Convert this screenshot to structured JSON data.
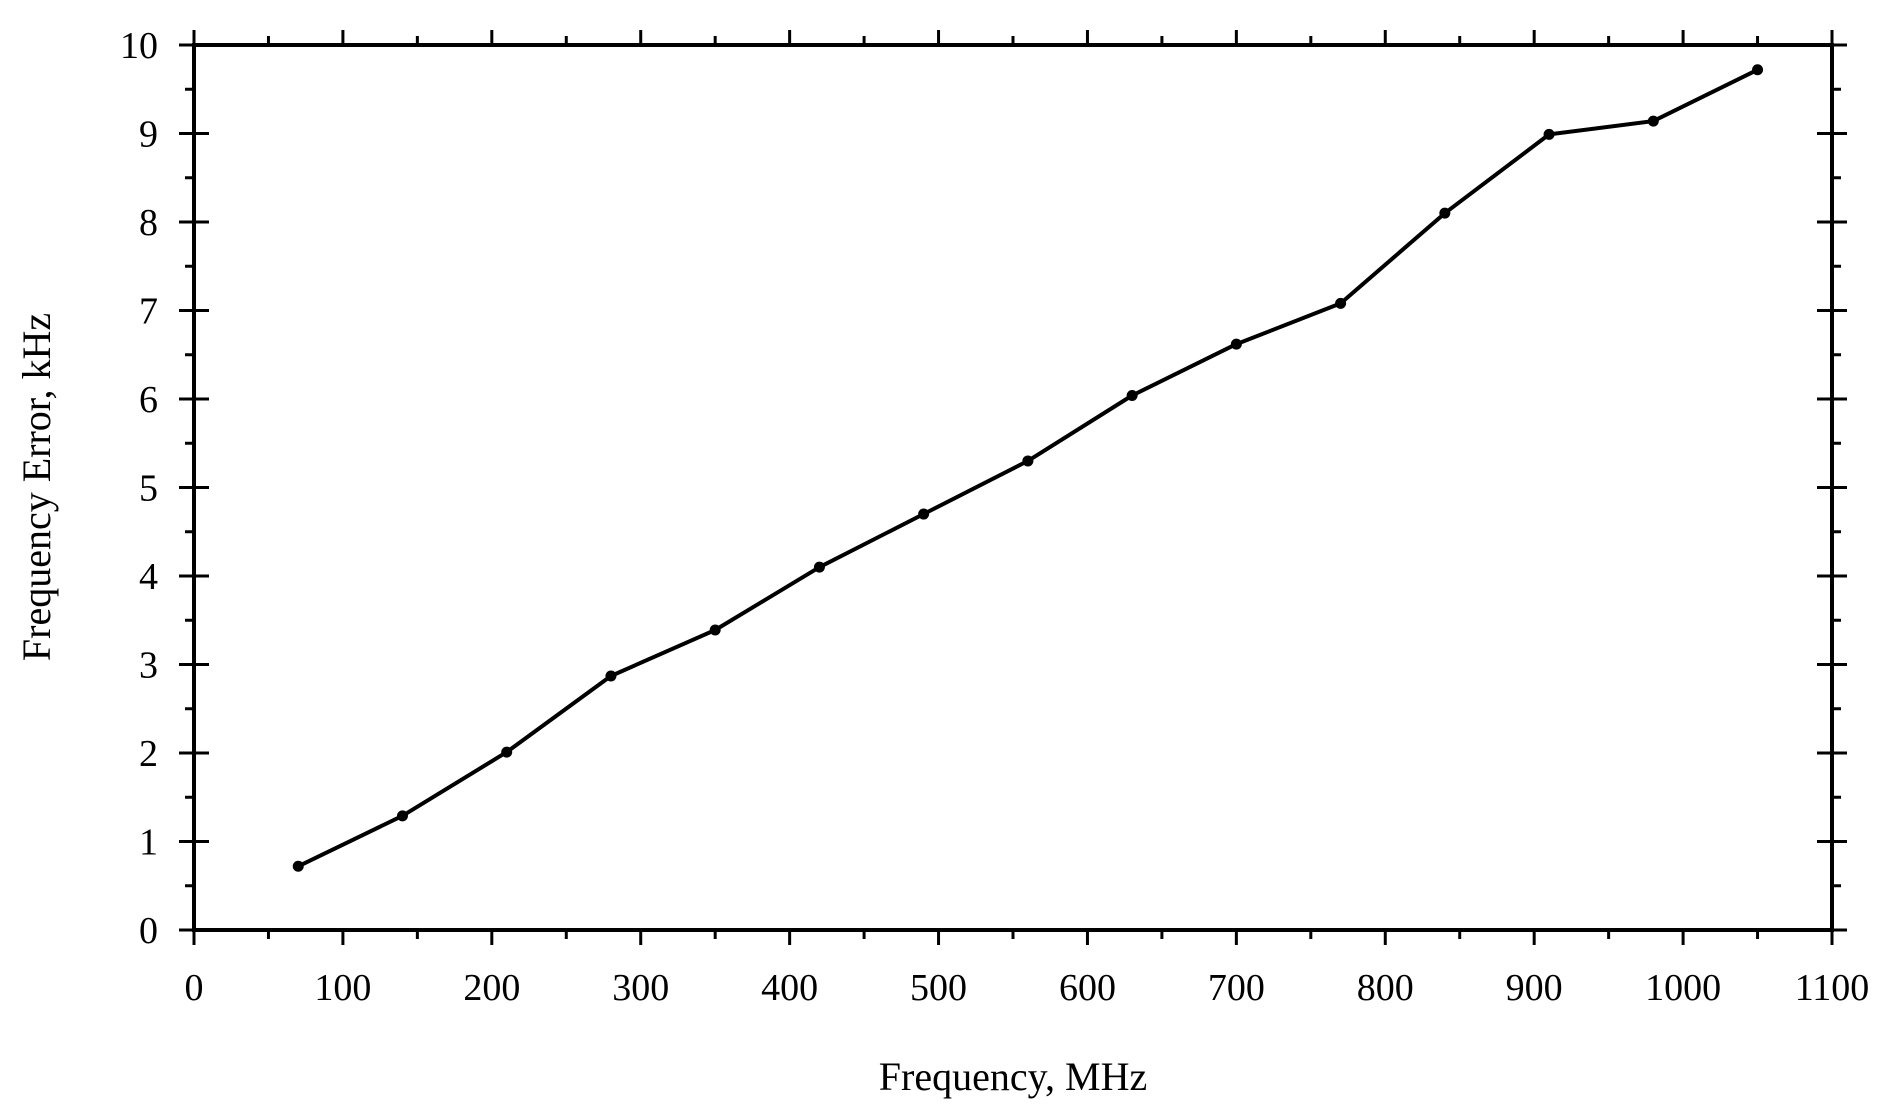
{
  "chart_data": {
    "type": "line",
    "title": "",
    "xlabel": "Frequency, MHz",
    "ylabel": "Frequency Error, kHz",
    "xlim": [
      0,
      1100
    ],
    "ylim": [
      0,
      10
    ],
    "x_ticks": [
      0,
      100,
      200,
      300,
      400,
      500,
      600,
      700,
      800,
      900,
      1000,
      1100
    ],
    "y_ticks": [
      0,
      1,
      2,
      3,
      4,
      5,
      6,
      7,
      8,
      9,
      10
    ],
    "x_tick_labels": [
      "0",
      "100",
      "200",
      "300",
      "400",
      "500",
      "600",
      "700",
      "800",
      "900",
      "1000",
      "1100"
    ],
    "y_tick_labels": [
      "0",
      "1",
      "2",
      "3",
      "4",
      "5",
      "6",
      "7",
      "8",
      "9",
      "10"
    ],
    "grid": false,
    "legend": "none",
    "series": [
      {
        "x": [
          70,
          140,
          210,
          280,
          350,
          420,
          490,
          560,
          630,
          700,
          770,
          840,
          910,
          980,
          1050
        ],
        "y": [
          0.72,
          1.29,
          2.01,
          2.87,
          3.39,
          4.1,
          4.7,
          5.3,
          6.04,
          6.62,
          7.08,
          8.1,
          8.99,
          9.14,
          9.72
        ],
        "color": "#000000",
        "marker": "dot"
      }
    ]
  }
}
